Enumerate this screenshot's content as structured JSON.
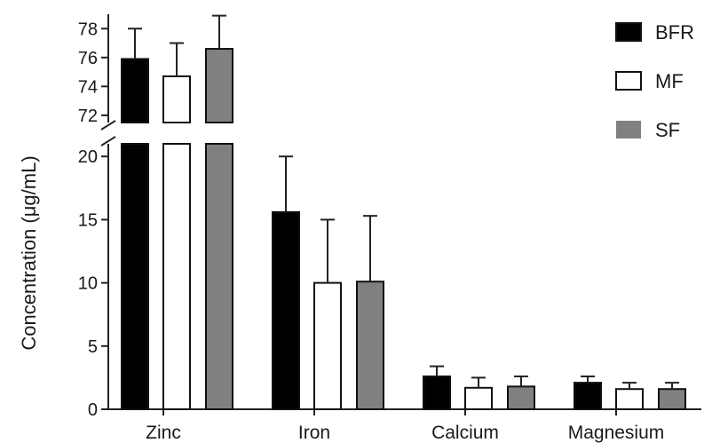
{
  "chart_data": {
    "type": "bar",
    "ylabel": "Concentration (μg/mL)",
    "categories": [
      "Zinc",
      "Iron",
      "Calcium",
      "Magnesium"
    ],
    "series": [
      {
        "name": "BFR",
        "color": "#000000",
        "style": "filled",
        "values": [
          75.9,
          15.6,
          2.6,
          2.1
        ],
        "errors": [
          2.1,
          4.4,
          0.8,
          0.5
        ]
      },
      {
        "name": "MF",
        "color": "#ffffff",
        "style": "outline",
        "values": [
          74.7,
          10.0,
          1.7,
          1.6
        ],
        "errors": [
          2.3,
          5.0,
          0.8,
          0.5
        ]
      },
      {
        "name": "SF",
        "color": "#808080",
        "style": "filled",
        "values": [
          76.6,
          10.1,
          1.8,
          1.6
        ],
        "errors": [
          2.3,
          5.2,
          0.8,
          0.5
        ]
      }
    ],
    "axis_break": {
      "lower": [
        0,
        21
      ],
      "upper": [
        71.5,
        79
      ]
    },
    "yticks_lower": [
      0,
      5,
      10,
      15,
      20
    ],
    "yticks_upper": [
      72,
      74,
      76,
      78
    ],
    "legend_position": "top-right",
    "grid": false
  }
}
